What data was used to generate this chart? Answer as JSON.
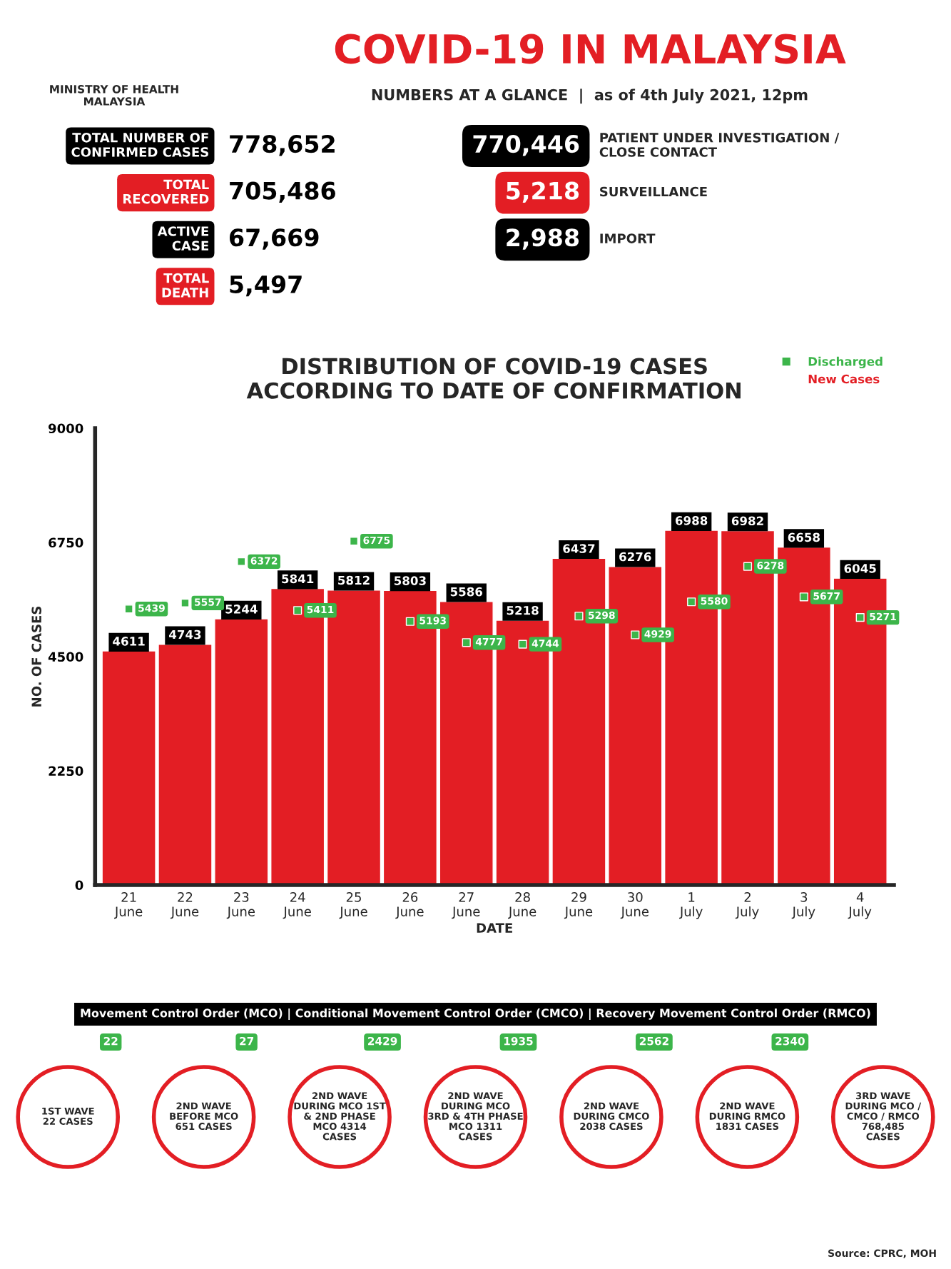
{
  "chart_data": [
    {
      "type": "other",
      "title": "COVID-19 IN MALAYSIA",
      "subtitle": "NUMBERS AT A GLANCE  |  as of 4th July 2021, 12pm",
      "annotations": [
        "MINISTRY OF HEALTH\nMALAYSIA",
        "TOTAL NUMBER OF\nCONFIRMED CASES",
        "778,652",
        "TOTAL\nRECOVERED",
        "705,486",
        "ACTIVE\nCASE",
        "67,669",
        "TOTAL\nDEATH",
        "5,497",
        "PATIENT UNDER INVESTIGATION /\nCLOSE CONTACT",
        "770,446",
        "SURVEILLANCE",
        "5,218",
        "IMPORT",
        "2,988"
      ]
    },
    {
      "type": "bar",
      "title": "DISTRIBUTION OF COVID-19 CASES\nACCORDING TO DATE OF CONFIRMATION",
      "xlabel": "DATE",
      "ylabel": "NO. OF CASES",
      "categories": [
        "21\nJune",
        "22\nJune",
        "23\nJune",
        "24\nJune",
        "25\nJune",
        "26\nJune",
        "27\nJune",
        "28\nJune",
        "29\nJune",
        "30\nJune",
        "1\nJuly",
        "2\nJuly",
        "3\nJuly",
        "4\nJuly"
      ],
      "series": [
        {
          "name": "Discharged",
          "type": "scatter",
          "color": "#3cb54a",
          "values": [
            5439,
            5557,
            6372,
            5411,
            6775,
            5193,
            4777,
            4744,
            5298,
            4929,
            5580,
            6278,
            5677,
            5271
          ]
        },
        {
          "name": "New Cases",
          "type": "bar",
          "color": "#e31e24",
          "values": [
            4611,
            4743,
            5244,
            5841,
            5812,
            5803,
            5586,
            5218,
            6437,
            6276,
            6988,
            6982,
            6658,
            6045
          ]
        }
      ],
      "ylim": [
        0,
        9000
      ],
      "yticks": [
        0,
        2250,
        4500,
        6750,
        9000
      ],
      "data_labels": true,
      "legend": "top right",
      "marker": "square",
      "annotations": [
        "Source: CPRC, MOH"
      ]
    },
    {
      "type": "other",
      "title": "Movement Control Order (MCO) | Conditional Movement Control Order (CMCO) | Recovery Movement Control Order (RMCO)",
      "annotations": [
        "1ST WAVE\n22 CASES",
        "22",
        "2ND WAVE\nBEFORE MCO\n651 CASES",
        "27",
        "2ND WAVE\nDURING MCO 1ST\n& 2ND PHASE\nMCO 4314\nCASES",
        "2429",
        "2ND WAVE\nDURING MCO\n3RD & 4TH PHASE\nMCO 1311\nCASES",
        "1935",
        "2ND WAVE\nDURING CMCO\n2038 CASES",
        "2562",
        "2ND WAVE\nDURING RMCO\n1831 CASES",
        "2340",
        "3RD WAVE\nDURING MCO /\nCMCO / RMCO\n768,485\nCASES"
      ]
    }
  ]
}
